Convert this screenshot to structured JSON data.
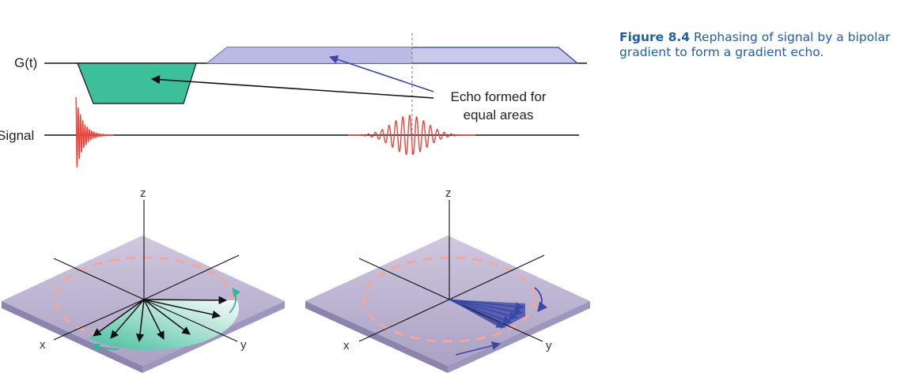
{
  "labels": {
    "gradient": "G(t)",
    "signal": "Signal",
    "echo_line1": "Echo formed for",
    "echo_line2": "equal areas"
  },
  "axes": {
    "z": "z",
    "x": "x",
    "y": "y"
  },
  "caption": {
    "figure": "Figure 8.4",
    "text": "Rephasing of signal by a bipolar gradient to form a gradient echo."
  },
  "colors": {
    "negative_lobe": "#3dbf9a",
    "positive_lobe": "#c9c9ea",
    "positive_lobe_edge": "#4a5aa8",
    "signal": "#e8453c",
    "plane": "#bcb3cf",
    "dephase_fan": "#3dbf9a",
    "rephase_fan": "#3a47a6",
    "caption": "#1f5ea8"
  }
}
